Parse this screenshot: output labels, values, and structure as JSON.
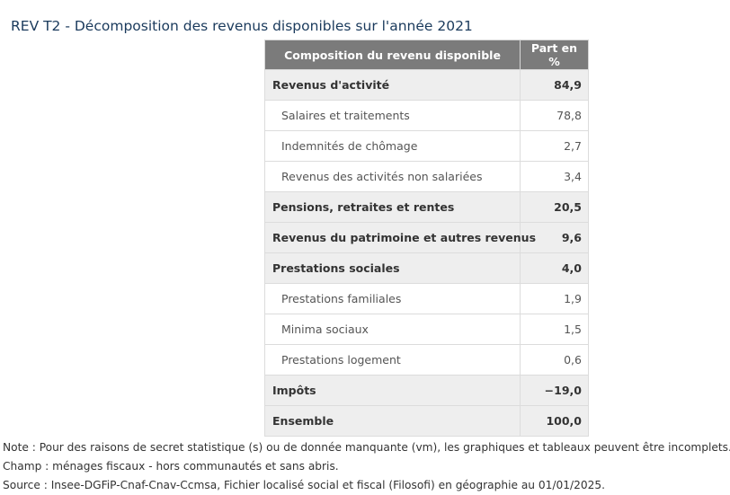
{
  "title": "REV T2 - Décomposition des revenus disponibles sur l'année 2021",
  "table": {
    "headers": {
      "label": "Composition du revenu disponible",
      "value": "Part en %"
    },
    "rows": [
      {
        "label": "Revenus d'activité",
        "value": "84,9",
        "level": "main"
      },
      {
        "label": "Salaires et traitements",
        "value": "78,8",
        "level": "sub"
      },
      {
        "label": "Indemnités de chômage",
        "value": "2,7",
        "level": "sub"
      },
      {
        "label": "Revenus des activités non salariées",
        "value": "3,4",
        "level": "sub"
      },
      {
        "label": "Pensions, retraites et rentes",
        "value": "20,5",
        "level": "main"
      },
      {
        "label": "Revenus du patrimoine et autres revenus",
        "value": "9,6",
        "level": "main"
      },
      {
        "label": "Prestations sociales",
        "value": "4,0",
        "level": "main"
      },
      {
        "label": "Prestations familiales",
        "value": "1,9",
        "level": "sub"
      },
      {
        "label": "Minima sociaux",
        "value": "1,5",
        "level": "sub"
      },
      {
        "label": "Prestations logement",
        "value": "0,6",
        "level": "sub"
      },
      {
        "label": "Impôts",
        "value": "−19,0",
        "level": "main"
      },
      {
        "label": "Ensemble",
        "value": "100,0",
        "level": "main"
      }
    ]
  },
  "notes": {
    "note": "Note : Pour des raisons de secret statistique (s) ou de donnée manquante (vm), les graphiques et tableaux peuvent être incomplets.",
    "champ": "Champ : ménages fiscaux - hors communautés et sans abris.",
    "source": "Source : Insee-DGFiP-Cnaf-Cnav-Ccmsa, Fichier localisé social et fiscal (Filosofi) en géographie au 01/01/2025."
  }
}
